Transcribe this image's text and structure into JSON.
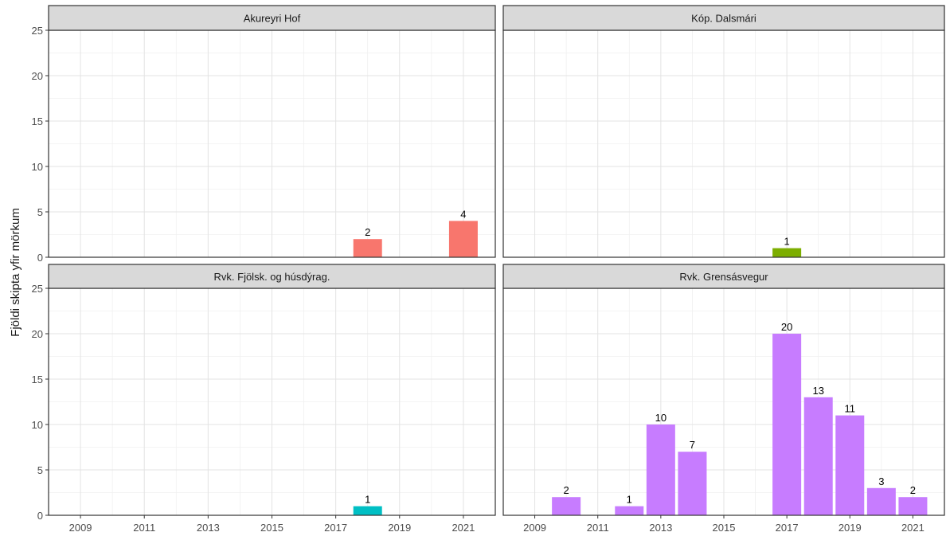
{
  "chart_data": {
    "type": "bar",
    "ylabel": "Fjöldi skipta yfir mörkum",
    "xlabel": "",
    "ylim": [
      0,
      25
    ],
    "y_ticks": [
      0,
      5,
      10,
      15,
      20,
      25
    ],
    "x_range": [
      2008,
      2022
    ],
    "x_ticks": [
      2009,
      2011,
      2013,
      2015,
      2017,
      2019,
      2021
    ],
    "grid": true,
    "legend": "none",
    "facets": [
      {
        "name": "Akureyri Hof",
        "color": "#F8766D",
        "points": [
          {
            "x": 2018,
            "y": 2
          },
          {
            "x": 2021,
            "y": 4
          }
        ]
      },
      {
        "name": "Kóp. Dalsmári",
        "color": "#7CAE00",
        "points": [
          {
            "x": 2017,
            "y": 1
          }
        ]
      },
      {
        "name": "Rvk. Fjölsk. og húsdýrag.",
        "color": "#00BFC4",
        "points": [
          {
            "x": 2018,
            "y": 1
          }
        ]
      },
      {
        "name": "Rvk. Grensásvegur",
        "color": "#C77CFF",
        "points": [
          {
            "x": 2010,
            "y": 2
          },
          {
            "x": 2012,
            "y": 1
          },
          {
            "x": 2013,
            "y": 10
          },
          {
            "x": 2014,
            "y": 7
          },
          {
            "x": 2017,
            "y": 20
          },
          {
            "x": 2018,
            "y": 13
          },
          {
            "x": 2019,
            "y": 11
          },
          {
            "x": 2020,
            "y": 3
          },
          {
            "x": 2021,
            "y": 2
          }
        ]
      }
    ]
  }
}
